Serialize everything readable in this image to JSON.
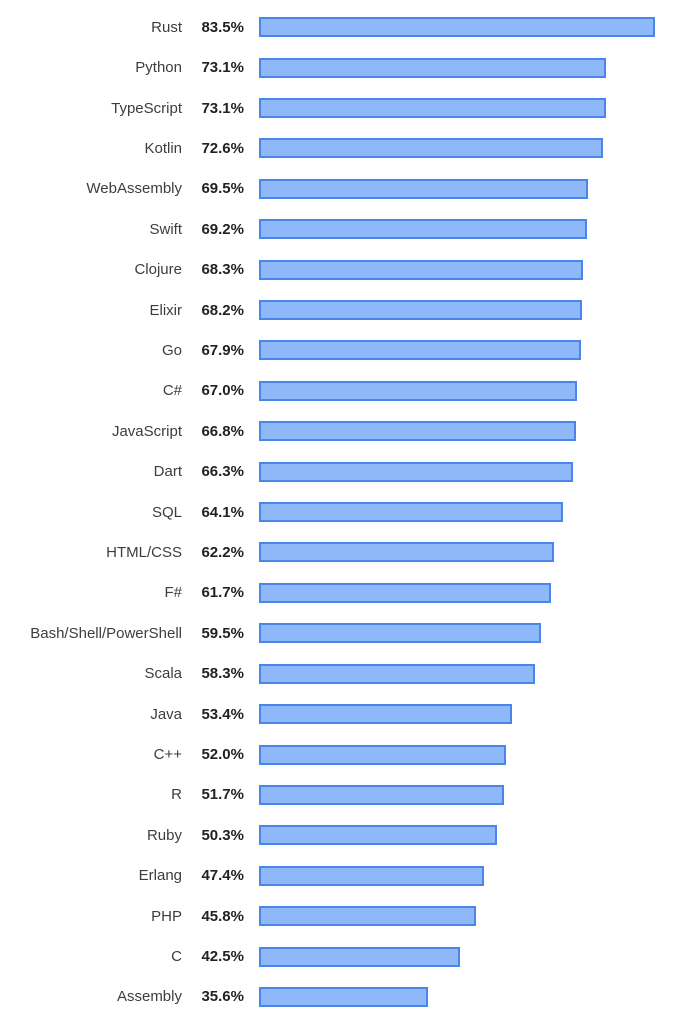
{
  "chart_data": {
    "type": "bar",
    "orientation": "horizontal",
    "title": "",
    "xlabel": "",
    "ylabel": "",
    "value_suffix": "%",
    "xlim": [
      0,
      88.6
    ],
    "grid": false,
    "legend": "none",
    "categories": [
      "Rust",
      "Python",
      "TypeScript",
      "Kotlin",
      "WebAssembly",
      "Swift",
      "Clojure",
      "Elixir",
      "Go",
      "C#",
      "JavaScript",
      "Dart",
      "SQL",
      "HTML/CSS",
      "F#",
      "Bash/Shell/PowerShell",
      "Scala",
      "Java",
      "C++",
      "R",
      "Ruby",
      "Erlang",
      "PHP",
      "C",
      "Assembly"
    ],
    "values": [
      83.5,
      73.1,
      73.1,
      72.6,
      69.5,
      69.2,
      68.3,
      68.2,
      67.9,
      67.0,
      66.8,
      66.3,
      64.1,
      62.2,
      61.7,
      59.5,
      58.3,
      53.4,
      52.0,
      51.7,
      50.3,
      47.4,
      45.8,
      42.5,
      35.6
    ],
    "colors": {
      "bar_fill": "#8FB8F8",
      "bar_border": "#4A86E8",
      "label_text": "#3D3D3D",
      "value_text": "#222222",
      "background": "#FFFFFF"
    }
  }
}
